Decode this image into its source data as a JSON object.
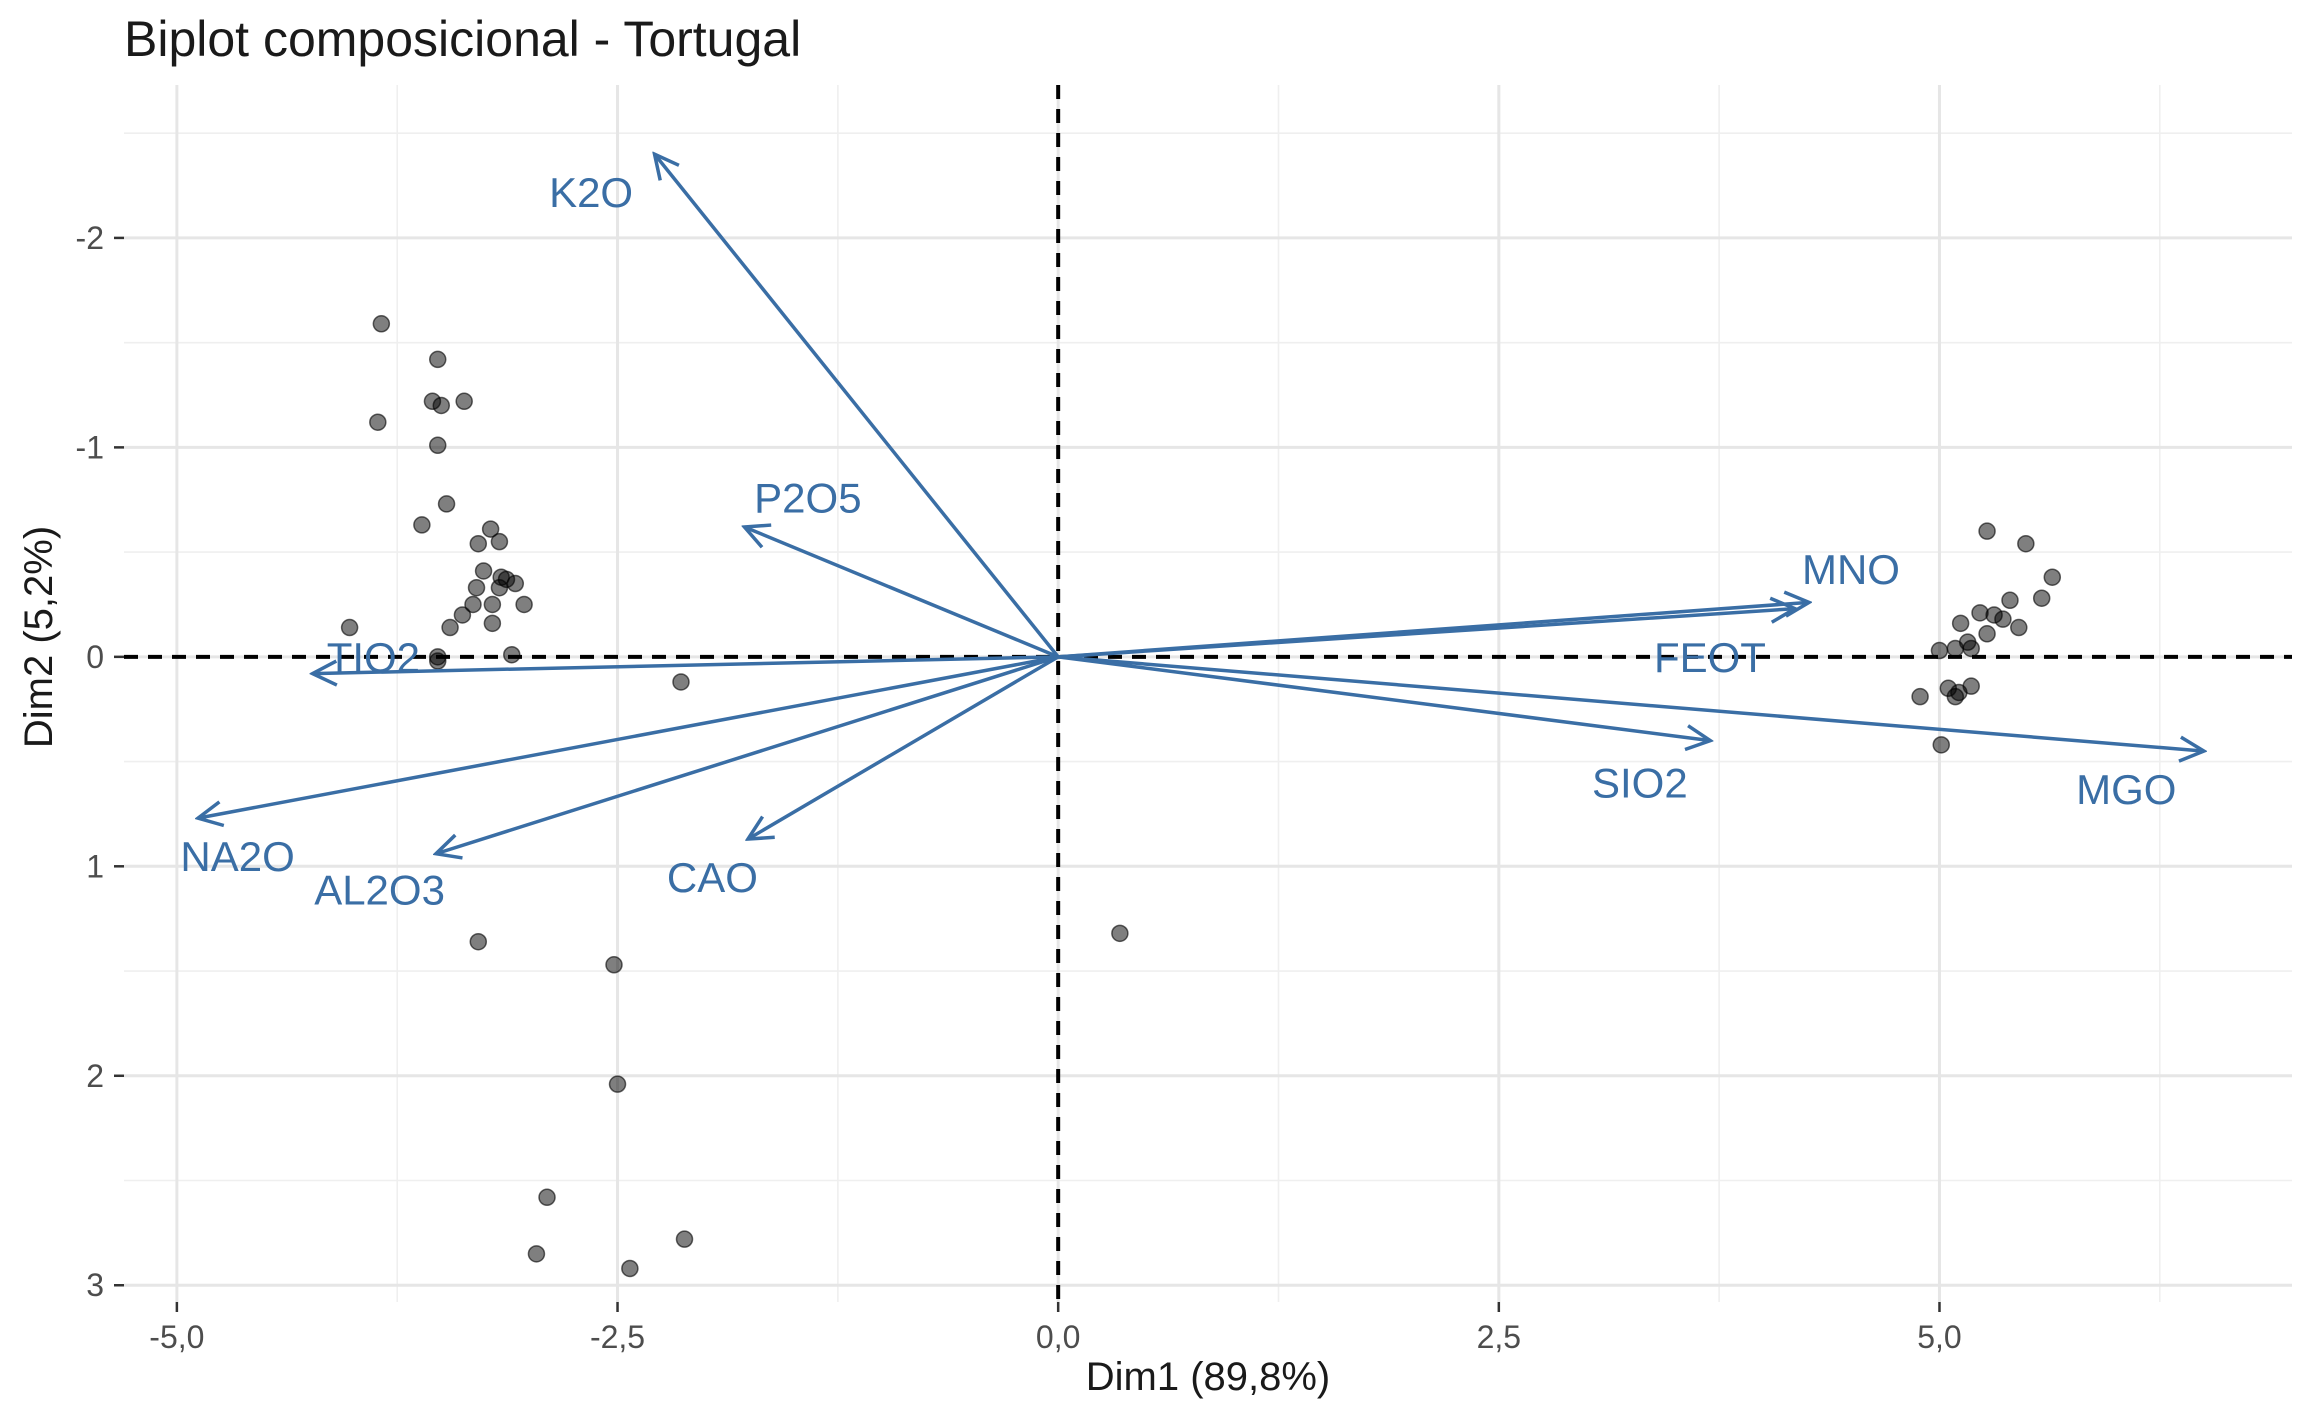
{
  "chart_data": {
    "type": "scatter",
    "title": "Biplot composicional - Tortugal",
    "xlabel": "Dim1 (89,8%)",
    "ylabel": "Dim2 (5,2%)",
    "xlim": [
      -5.3,
      7.0
    ],
    "ylim": [
      -2.73,
      3.08
    ],
    "y_reversed": true,
    "grid": true,
    "x_ticks": [
      {
        "value": -5.0,
        "label": "-5,0"
      },
      {
        "value": -2.5,
        "label": "-2,5"
      },
      {
        "value": 0.0,
        "label": "0,0"
      },
      {
        "value": 2.5,
        "label": "2,5"
      },
      {
        "value": 5.0,
        "label": "5,0"
      }
    ],
    "x_minor_ticks": [
      -3.75,
      -1.25,
      1.25,
      3.75,
      6.25
    ],
    "y_ticks": [
      {
        "value": -2,
        "label": "-2"
      },
      {
        "value": -1,
        "label": "-1"
      },
      {
        "value": 0,
        "label": "0"
      },
      {
        "value": 1,
        "label": "1"
      },
      {
        "value": 2,
        "label": "2"
      },
      {
        "value": 3,
        "label": "3"
      }
    ],
    "y_minor_ticks": [
      -2.5,
      -1.5,
      -0.5,
      0.5,
      1.5,
      2.5
    ],
    "reference_lines": {
      "x": 0,
      "y": 0
    },
    "point_color": "#000000",
    "loading_color": "#3A6EA5",
    "points": [
      [
        -3.84,
        -1.59
      ],
      [
        -3.52,
        -1.42
      ],
      [
        -3.55,
        -1.22
      ],
      [
        -3.5,
        -1.2
      ],
      [
        -3.37,
        -1.22
      ],
      [
        -3.86,
        -1.12
      ],
      [
        -3.52,
        -1.01
      ],
      [
        -3.47,
        -0.73
      ],
      [
        -3.61,
        -0.63
      ],
      [
        -3.22,
        -0.61
      ],
      [
        -3.29,
        -0.54
      ],
      [
        -3.17,
        -0.55
      ],
      [
        -3.26,
        -0.41
      ],
      [
        -3.16,
        -0.38
      ],
      [
        -3.13,
        -0.37
      ],
      [
        -3.08,
        -0.35
      ],
      [
        -3.17,
        -0.33
      ],
      [
        -3.3,
        -0.33
      ],
      [
        -3.32,
        -0.25
      ],
      [
        -3.21,
        -0.25
      ],
      [
        -3.03,
        -0.25
      ],
      [
        -3.38,
        -0.2
      ],
      [
        -3.45,
        -0.14
      ],
      [
        -3.21,
        -0.16
      ],
      [
        -4.02,
        -0.14
      ],
      [
        -3.52,
        0.0
      ],
      [
        -3.52,
        0.02
      ],
      [
        -3.1,
        -0.01
      ],
      [
        -2.14,
        0.12
      ],
      [
        0.35,
        1.32
      ],
      [
        -3.29,
        1.36
      ],
      [
        -2.52,
        1.47
      ],
      [
        -2.5,
        2.04
      ],
      [
        -2.9,
        2.58
      ],
      [
        -2.96,
        2.85
      ],
      [
        -2.43,
        2.92
      ],
      [
        -2.12,
        2.78
      ],
      [
        5.27,
        -0.6
      ],
      [
        5.49,
        -0.54
      ],
      [
        5.64,
        -0.38
      ],
      [
        5.58,
        -0.28
      ],
      [
        5.4,
        -0.27
      ],
      [
        5.23,
        -0.21
      ],
      [
        5.31,
        -0.2
      ],
      [
        5.36,
        -0.18
      ],
      [
        5.45,
        -0.14
      ],
      [
        5.12,
        -0.16
      ],
      [
        5.27,
        -0.11
      ],
      [
        5.16,
        -0.07
      ],
      [
        5.18,
        -0.04
      ],
      [
        5.09,
        -0.04
      ],
      [
        5.0,
        -0.03
      ],
      [
        5.18,
        0.14
      ],
      [
        5.05,
        0.15
      ],
      [
        5.11,
        0.17
      ],
      [
        5.09,
        0.19
      ],
      [
        4.89,
        0.19
      ],
      [
        5.01,
        0.42
      ]
    ],
    "loadings": [
      {
        "label": "K2O",
        "x": -2.29,
        "y": -2.4,
        "lx": -2.65,
        "ly": -2.22,
        "anchor": "middle"
      },
      {
        "label": "P2O5",
        "x": -1.78,
        "y": -0.62,
        "lx": -1.42,
        "ly": -0.76,
        "anchor": "middle"
      },
      {
        "label": "TIO2",
        "x": -4.23,
        "y": 0.08,
        "lx": -4.15,
        "ly": 0.0,
        "anchor": "start"
      },
      {
        "label": "NA2O",
        "x": -4.88,
        "y": 0.77,
        "lx": -4.98,
        "ly": 0.95,
        "anchor": "start"
      },
      {
        "label": "AL2O3",
        "x": -3.53,
        "y": 0.94,
        "lx": -3.85,
        "ly": 1.11,
        "anchor": "middle"
      },
      {
        "label": "CAO",
        "x": -1.76,
        "y": 0.87,
        "lx": -2.22,
        "ly": 1.05,
        "anchor": "start"
      },
      {
        "label": "MNO",
        "x": 4.26,
        "y": -0.26,
        "lx": 4.22,
        "ly": -0.42,
        "anchor": "start"
      },
      {
        "label": "FEOT",
        "x": 4.18,
        "y": -0.23,
        "lx": 3.38,
        "ly": 0.0,
        "anchor": "start"
      },
      {
        "label": "SIO2",
        "x": 3.7,
        "y": 0.4,
        "lx": 3.3,
        "ly": 0.6,
        "anchor": "middle"
      },
      {
        "label": "MGO",
        "x": 6.5,
        "y": 0.45,
        "lx": 6.06,
        "ly": 0.63,
        "anchor": "middle"
      }
    ]
  }
}
